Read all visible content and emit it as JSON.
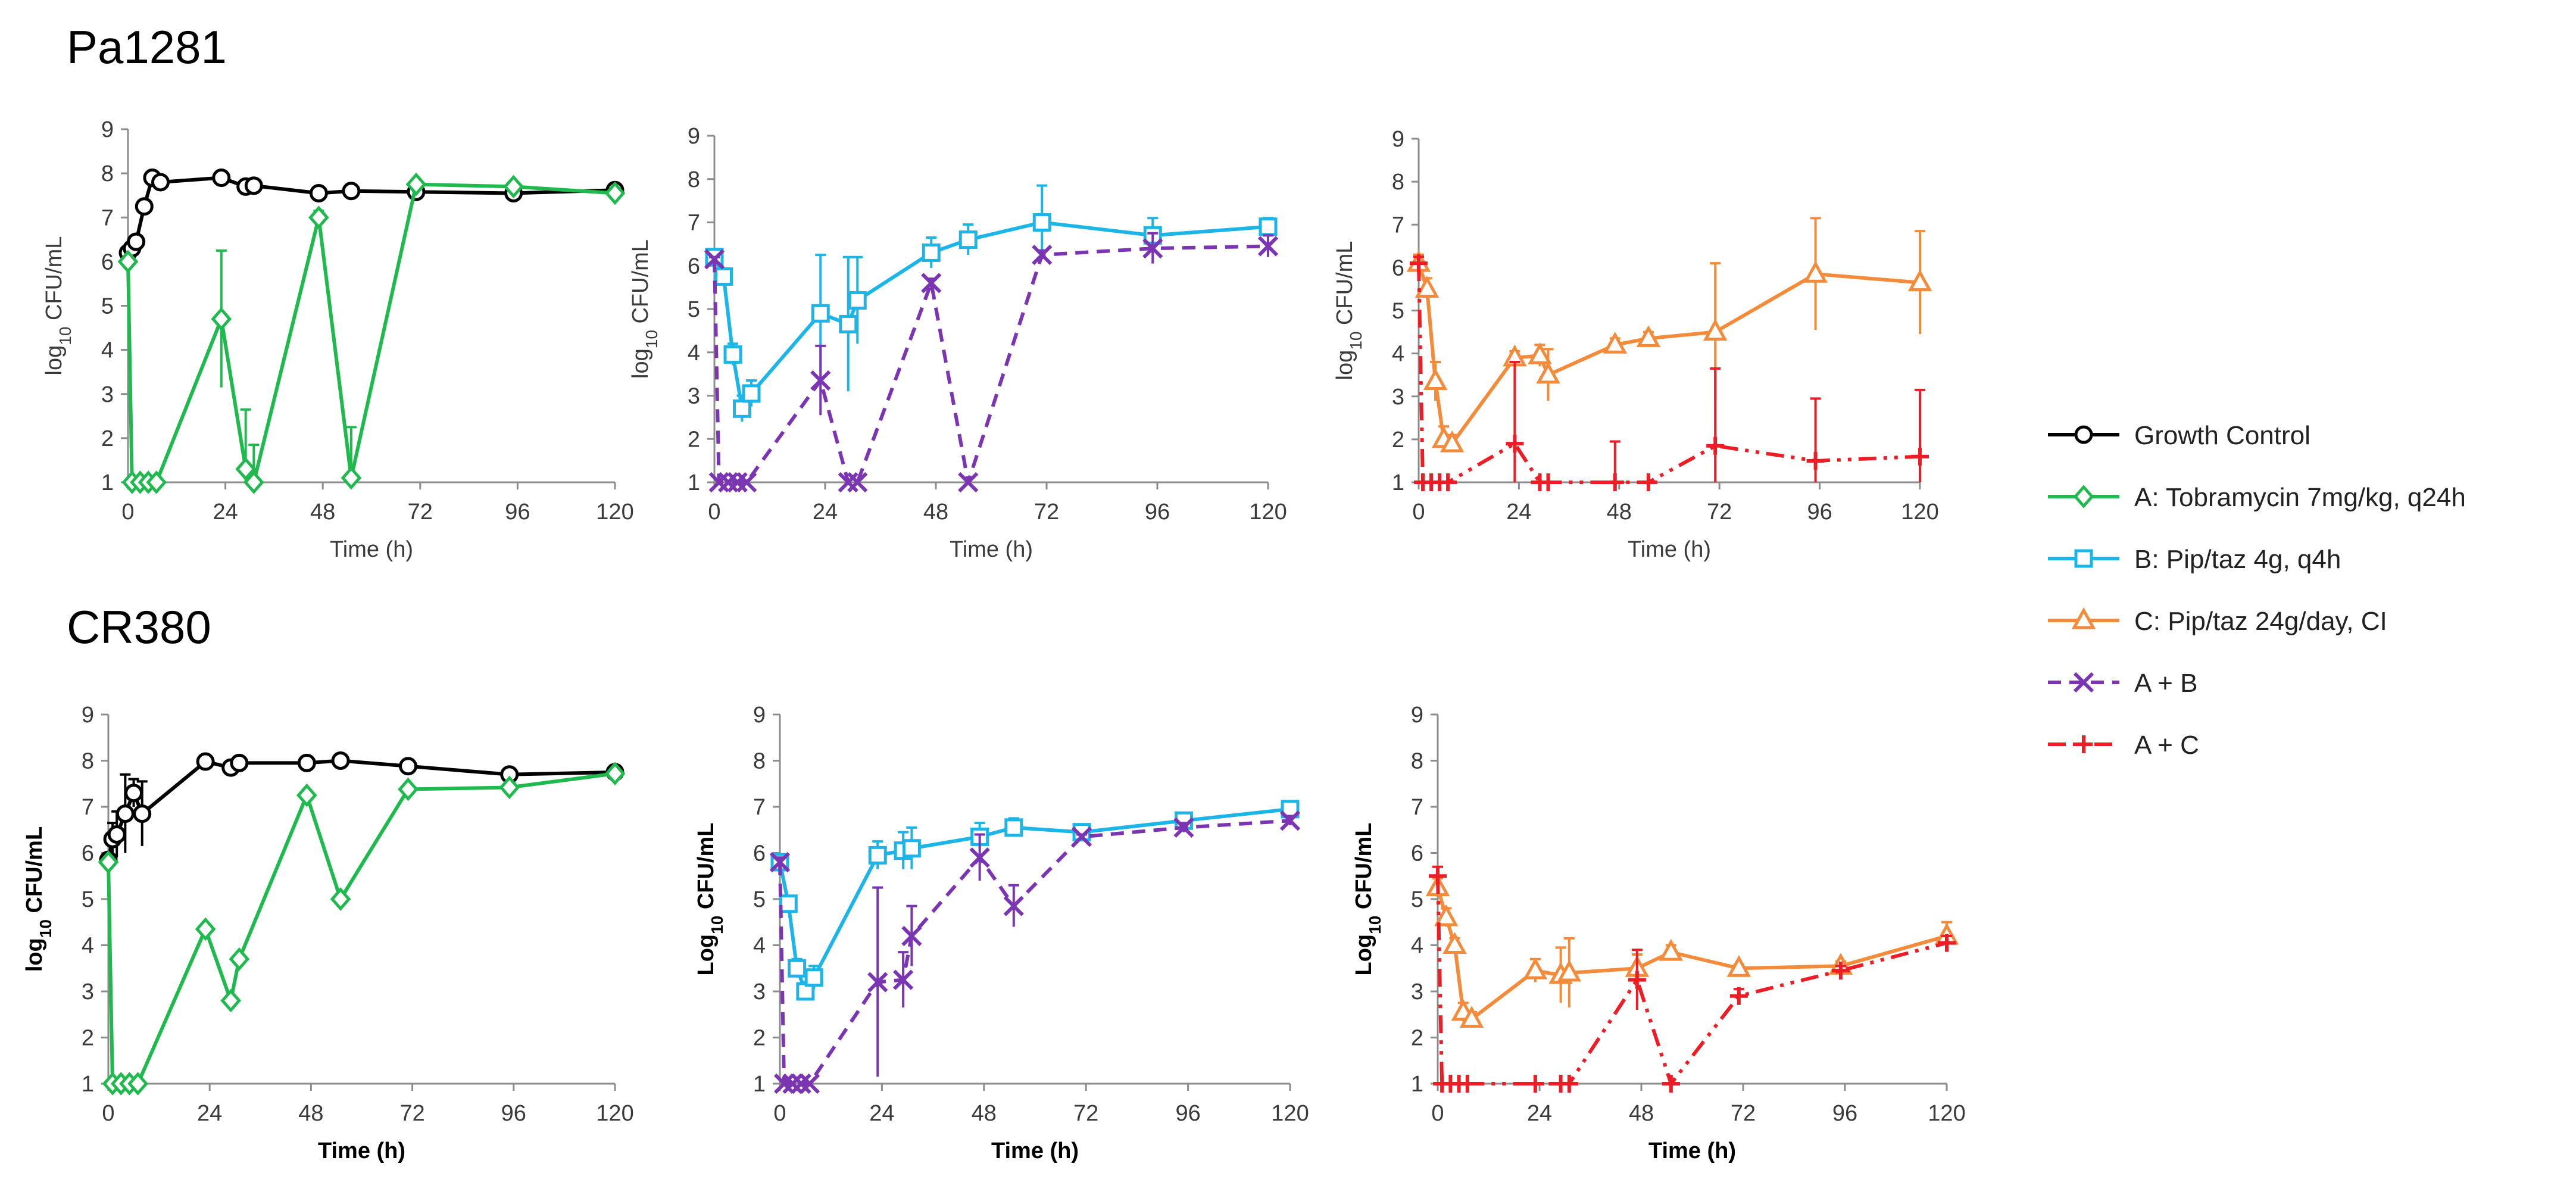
{
  "figure": {
    "row_titles": [
      "Pa1281",
      "CR380"
    ]
  },
  "legend": [
    {
      "series": "GC",
      "label": "Growth Control"
    },
    {
      "series": "A",
      "label": "A: Tobramycin 7mg/kg, q24h"
    },
    {
      "series": "B",
      "label": "B: Pip/taz 4g, q4h"
    },
    {
      "series": "C",
      "label": "C: Pip/taz 24g/day, CI"
    },
    {
      "series": "AB",
      "label": "A + B"
    },
    {
      "series": "AC",
      "label": "A + C"
    }
  ],
  "styles": {
    "GC": {
      "color": "#000000",
      "marker": "circle",
      "dash": ""
    },
    "A": {
      "color": "#1fba4e",
      "marker": "diamond",
      "dash": ""
    },
    "B": {
      "color": "#1bb5e8",
      "marker": "square",
      "dash": ""
    },
    "C": {
      "color": "#f48b3a",
      "marker": "triangle",
      "dash": ""
    },
    "AB": {
      "color": "#7b35b3",
      "marker": "cross",
      "dash": "22,14"
    },
    "AC": {
      "color": "#ee1c24",
      "marker": "plus",
      "dash": "30,12,6,12,6,12"
    }
  },
  "chart_data": [
    {
      "type": "line",
      "panel": "Pa1281-A",
      "xlabel": "Time (h)",
      "ylabel": "log10 CFU/mL",
      "bold_labels": false,
      "xticks": [
        0,
        24,
        48,
        72,
        96,
        120
      ],
      "yticks": [
        1,
        2,
        3,
        4,
        5,
        6,
        7,
        8,
        9
      ],
      "xlim": [
        0,
        120
      ],
      "ylim": [
        1,
        9
      ],
      "series": [
        {
          "key": "GC",
          "name": "Growth Control",
          "x": [
            0,
            1,
            2,
            4,
            6,
            8,
            23,
            29,
            31,
            47,
            55,
            71,
            95,
            120
          ],
          "y": [
            6.2,
            6.3,
            6.45,
            7.25,
            7.9,
            7.8,
            7.9,
            7.7,
            7.72,
            7.55,
            7.6,
            7.58,
            7.55,
            7.62
          ],
          "err": [
            0.1,
            0.1,
            0.12,
            0.1,
            0.1,
            0.12,
            0.08,
            0.1,
            0.08,
            0.08,
            0.06,
            0.08,
            0.08,
            0.06
          ]
        },
        {
          "key": "A",
          "name": "A: Tobramycin 7mg/kg, q24h",
          "x": [
            0,
            1,
            3,
            5,
            7,
            23,
            29,
            31,
            47,
            55,
            71,
            95,
            120
          ],
          "y": [
            6.0,
            1,
            1,
            1,
            1,
            4.7,
            1.3,
            1.0,
            7.0,
            1.1,
            7.75,
            7.7,
            7.55
          ],
          "err": [
            0,
            0,
            0,
            0,
            0,
            1.55,
            1.35,
            0.85,
            0.15,
            1.15,
            0.05,
            0.05,
            0.05
          ]
        }
      ]
    },
    {
      "type": "line",
      "panel": "Pa1281-B",
      "xlabel": "Time (h)",
      "ylabel": "log10 CFU/mL",
      "bold_labels": false,
      "xticks": [
        0,
        24,
        48,
        72,
        96,
        120
      ],
      "yticks": [
        1,
        2,
        3,
        4,
        5,
        6,
        7,
        8,
        9
      ],
      "xlim": [
        0,
        120
      ],
      "ylim": [
        1,
        9
      ],
      "series": [
        {
          "key": "B",
          "name": "B: Pip/taz 4g, q4h",
          "x": [
            0,
            2,
            4,
            6,
            8,
            23,
            29,
            31,
            47,
            55,
            71,
            95,
            120
          ],
          "y": [
            6.2,
            5.75,
            3.95,
            2.7,
            3.05,
            4.9,
            4.65,
            5.2,
            6.3,
            6.6,
            7.0,
            6.7,
            6.9
          ],
          "err": [
            0.05,
            0.1,
            0.25,
            0.3,
            0.3,
            1.35,
            1.55,
            1.0,
            0.35,
            0.35,
            0.85,
            0.4,
            0.2
          ]
        },
        {
          "key": "AB",
          "name": "A + B",
          "x": [
            0,
            1,
            3,
            5,
            7,
            23,
            29,
            31,
            47,
            55,
            71,
            95,
            120
          ],
          "y": [
            6.15,
            1,
            1,
            1,
            1,
            3.35,
            1.0,
            1.0,
            5.6,
            1.0,
            6.25,
            6.4,
            6.45
          ],
          "err": [
            0.05,
            0,
            0,
            0,
            0,
            0.8,
            0,
            0,
            0.1,
            0,
            0.1,
            0.35,
            0.25
          ]
        }
      ]
    },
    {
      "type": "line",
      "panel": "Pa1281-C",
      "xlabel": "Time (h)",
      "ylabel": "log10 CFU/mL",
      "bold_labels": false,
      "xticks": [
        0,
        24,
        48,
        72,
        96,
        120
      ],
      "yticks": [
        1,
        2,
        3,
        4,
        5,
        6,
        7,
        8,
        9
      ],
      "xlim": [
        0,
        120
      ],
      "ylim": [
        1,
        9
      ],
      "series": [
        {
          "key": "C",
          "name": "C: Pip/taz 24g/day, CI",
          "x": [
            0,
            2,
            4,
            6,
            8,
            23,
            29,
            31,
            47,
            55,
            71,
            95,
            120
          ],
          "y": [
            6.1,
            5.5,
            3.35,
            2.0,
            1.9,
            3.9,
            3.95,
            3.5,
            4.2,
            4.35,
            4.5,
            5.85,
            5.65
          ],
          "err": [
            0.2,
            0.25,
            0.45,
            0.3,
            0.2,
            0.15,
            0.25,
            0.6,
            0.15,
            0.15,
            1.6,
            1.3,
            1.2
          ]
        },
        {
          "key": "AC",
          "name": "A + C",
          "x": [
            0,
            1,
            3,
            5,
            7,
            23,
            29,
            31,
            47,
            55,
            71,
            95,
            120
          ],
          "y": [
            6.1,
            1,
            1,
            1,
            1,
            1.9,
            1.0,
            1.0,
            1.0,
            1.0,
            1.85,
            1.5,
            1.6
          ],
          "err": [
            0.15,
            0,
            0,
            0,
            0,
            1.9,
            0,
            0,
            0.95,
            0,
            1.8,
            1.45,
            1.55
          ]
        }
      ]
    },
    {
      "type": "line",
      "panel": "CR380-A",
      "xlabel": "Time (h)",
      "ylabel": "log10 CFU/mL",
      "bold_labels": true,
      "xticks": [
        0,
        24,
        48,
        72,
        96,
        120
      ],
      "yticks": [
        1,
        2,
        3,
        4,
        5,
        6,
        7,
        8,
        9
      ],
      "xlim": [
        0,
        120
      ],
      "ylim": [
        1,
        9
      ],
      "series": [
        {
          "key": "GC",
          "name": "Growth Control",
          "x": [
            0,
            1,
            2,
            4,
            6,
            8,
            23,
            29,
            31,
            47,
            55,
            71,
            95,
            120
          ],
          "y": [
            5.85,
            6.3,
            6.4,
            6.85,
            7.3,
            6.85,
            7.98,
            7.85,
            7.95,
            7.95,
            8.0,
            7.88,
            7.7,
            7.75
          ],
          "err": [
            0.1,
            0.35,
            0.5,
            0.85,
            0.3,
            0.7,
            0.05,
            0.1,
            0.05,
            0.05,
            0.05,
            0.05,
            0.05,
            0.15
          ]
        },
        {
          "key": "A",
          "name": "A: Tobramycin 7mg/kg, q24h",
          "x": [
            0,
            1,
            3,
            5,
            7,
            23,
            29,
            31,
            47,
            55,
            71,
            95,
            120
          ],
          "y": [
            5.8,
            1,
            1,
            1,
            1,
            4.35,
            2.8,
            3.7,
            7.25,
            5.0,
            7.38,
            7.42,
            7.72
          ],
          "err": [
            0,
            0,
            0,
            0,
            0,
            0.08,
            0.08,
            0.08,
            0.08,
            0.08,
            0.08,
            0.08,
            0.1
          ]
        }
      ]
    },
    {
      "type": "line",
      "panel": "CR380-B",
      "xlabel": "Time (h)",
      "ylabel": "Log10 CFU/mL",
      "bold_labels": true,
      "xticks": [
        0,
        24,
        48,
        72,
        96,
        120
      ],
      "yticks": [
        1,
        2,
        3,
        4,
        5,
        6,
        7,
        8,
        9
      ],
      "xlim": [
        0,
        120
      ],
      "ylim": [
        1,
        9
      ],
      "series": [
        {
          "key": "B",
          "name": "B: Pip/taz 4g, q4h",
          "x": [
            0,
            2,
            4,
            6,
            8,
            23,
            29,
            31,
            47,
            55,
            71,
            95,
            120
          ],
          "y": [
            5.8,
            4.9,
            3.5,
            3.0,
            3.3,
            5.95,
            6.05,
            6.1,
            6.35,
            6.55,
            6.45,
            6.7,
            6.95
          ],
          "err": [
            0.05,
            0.1,
            0.2,
            0.2,
            0.25,
            0.3,
            0.4,
            0.45,
            0.3,
            0.2,
            0.05,
            0.08,
            0.05
          ]
        },
        {
          "key": "AB",
          "name": "A + B",
          "x": [
            0,
            1,
            3,
            5,
            7,
            23,
            29,
            31,
            47,
            55,
            71,
            95,
            120
          ],
          "y": [
            5.8,
            1,
            1,
            1,
            1,
            3.2,
            3.25,
            4.2,
            5.9,
            4.85,
            6.35,
            6.55,
            6.7
          ],
          "err": [
            0.1,
            0,
            0,
            0,
            0,
            2.05,
            0.6,
            0.65,
            0.5,
            0.45,
            0.05,
            0.1,
            0.1
          ]
        }
      ]
    },
    {
      "type": "line",
      "panel": "CR380-C",
      "xlabel": "Time (h)",
      "ylabel": "Log10 CFU/mL",
      "bold_labels": true,
      "xticks": [
        0,
        24,
        48,
        72,
        96,
        120
      ],
      "yticks": [
        1,
        2,
        3,
        4,
        5,
        6,
        7,
        8,
        9
      ],
      "xlim": [
        0,
        120
      ],
      "ylim": [
        1,
        9
      ],
      "series": [
        {
          "key": "C",
          "name": "C: Pip/taz 24g/day, CI",
          "x": [
            0,
            2,
            4,
            6,
            8,
            23,
            29,
            31,
            47,
            55,
            71,
            95,
            120
          ],
          "y": [
            5.25,
            4.6,
            4.0,
            2.55,
            2.4,
            3.45,
            3.35,
            3.4,
            3.5,
            3.85,
            3.5,
            3.55,
            4.2
          ],
          "err": [
            0.2,
            0.2,
            0.15,
            0.2,
            0.15,
            0.25,
            0.6,
            0.75,
            0.3,
            0.15,
            0.08,
            0.1,
            0.3
          ]
        },
        {
          "key": "AC",
          "name": "A + C",
          "x": [
            0,
            1,
            3,
            5,
            7,
            23,
            29,
            31,
            47,
            55,
            71,
            95,
            120
          ],
          "y": [
            5.5,
            1,
            1,
            1,
            1,
            1.0,
            1.0,
            1.0,
            3.25,
            1.0,
            2.9,
            3.45,
            4.05
          ],
          "err": [
            0.2,
            0,
            0,
            0,
            0,
            0,
            0,
            0,
            0.65,
            0,
            0.15,
            0.1,
            0.15
          ]
        }
      ]
    }
  ]
}
